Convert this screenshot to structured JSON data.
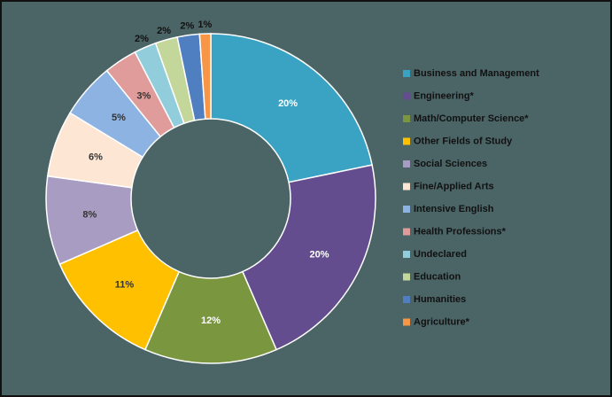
{
  "chart_data": {
    "type": "donut",
    "categories": [
      "Business and Management",
      "Engineering*",
      "Math/Computer Science*",
      "Other Fields of Study",
      "Social Sciences",
      "Fine/Applied Arts",
      "Intensive English",
      "Health Professions*",
      "Undeclared",
      "Education",
      "Humanities",
      "Agriculture*"
    ],
    "values": [
      20,
      20,
      12,
      11,
      8,
      6,
      5,
      3,
      2,
      2,
      2,
      1
    ],
    "value_labels": [
      "20%",
      "20%",
      "12%",
      "11%",
      "8%",
      "6%",
      "5%",
      "3%",
      "2%",
      "2%",
      "2%",
      "1%"
    ],
    "colors": [
      "#3aa3c4",
      "#644d8e",
      "#7a963f",
      "#ffc000",
      "#a99cc2",
      "#fde6d4",
      "#8db3e2",
      "#df9c9a",
      "#92cddc",
      "#c4d79b",
      "#4f7fc0",
      "#f79646"
    ],
    "legend": "right"
  }
}
